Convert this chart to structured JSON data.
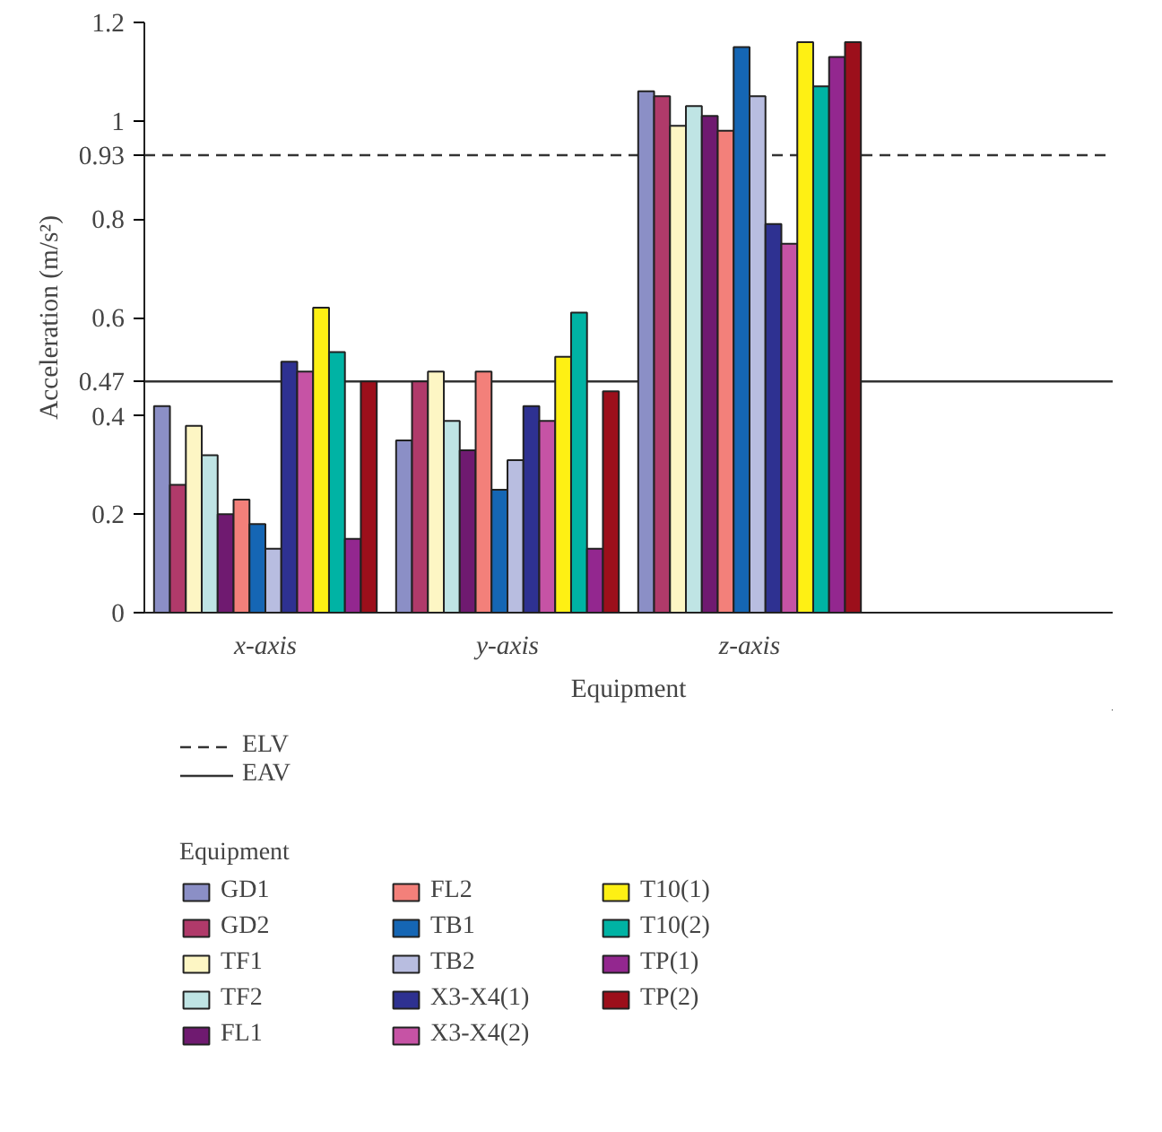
{
  "chart_data": {
    "type": "bar",
    "xlabel": "Equipment",
    "ylabel": "Acceleration (m/s²)",
    "legend_title": "Equipment",
    "categories": [
      "x-axis",
      "y-axis",
      "z-axis",
      null
    ],
    "ylim": [
      0,
      1.2
    ],
    "yticks": [
      0,
      0.2,
      0.4,
      0.47,
      0.6,
      0.8,
      0.93,
      1,
      1.2
    ],
    "grid": false,
    "legend": "bottom",
    "series": [
      {
        "name": "GD1",
        "color": "#8b8fc6",
        "values": [
          0.42,
          0.35,
          1.06,
          null
        ]
      },
      {
        "name": "GD2",
        "color": "#b03a6a",
        "values": [
          0.26,
          0.47,
          1.05,
          null
        ]
      },
      {
        "name": "TF1",
        "color": "#fdf6c4",
        "values": [
          0.38,
          0.49,
          0.99,
          null
        ]
      },
      {
        "name": "TF2",
        "color": "#bfe4e4",
        "values": [
          0.32,
          0.39,
          1.03,
          null
        ]
      },
      {
        "name": "FL1",
        "color": "#6f1a70",
        "values": [
          0.2,
          0.33,
          1.01,
          null
        ]
      },
      {
        "name": "FL2",
        "color": "#f3807a",
        "values": [
          0.23,
          0.49,
          0.98,
          null
        ]
      },
      {
        "name": "TB1",
        "color": "#1566b4",
        "values": [
          0.18,
          0.25,
          1.15,
          null
        ]
      },
      {
        "name": "TB2",
        "color": "#b8bde0",
        "values": [
          0.13,
          0.31,
          1.05,
          null
        ]
      },
      {
        "name": "X3-X4(1)",
        "color": "#2e3191",
        "values": [
          0.51,
          0.42,
          0.79,
          null
        ]
      },
      {
        "name": "X3-X4(2)",
        "color": "#c653a5",
        "values": [
          0.49,
          0.39,
          0.75,
          null
        ]
      },
      {
        "name": "T10(1)",
        "color": "#fef014",
        "values": [
          0.62,
          0.52,
          1.16,
          null
        ]
      },
      {
        "name": "T10(2)",
        "color": "#00b3a4",
        "values": [
          0.53,
          0.61,
          1.07,
          null
        ]
      },
      {
        "name": "TP(1)",
        "color": "#93278f",
        "values": [
          0.15,
          0.13,
          1.13,
          null
        ]
      },
      {
        "name": "TP(2)",
        "color": "#9c0f1b",
        "values": [
          0.47,
          0.45,
          1.16,
          null
        ]
      }
    ],
    "ref_lines": [
      {
        "axis": "y",
        "value": 0.93,
        "label": "ELV",
        "line_style": "dashed",
        "color": "#333333"
      },
      {
        "axis": "y",
        "value": 0.47,
        "label": "EAV",
        "line_style": "solid",
        "color": "#333333"
      }
    ]
  }
}
